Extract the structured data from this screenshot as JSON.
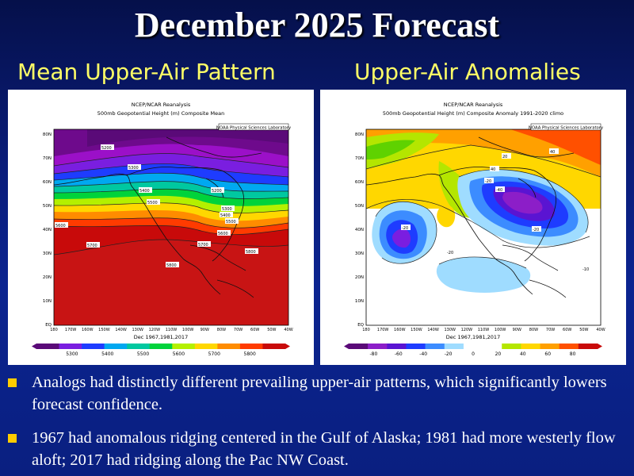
{
  "slide": {
    "title": "December 2025 Forecast",
    "left_heading": "Mean Upper-Air Pattern",
    "right_heading": "Upper-Air Anomalies"
  },
  "colors": {
    "background": "#0a1d7a",
    "title": "#ffffff",
    "heading": "#ffff66",
    "bullet": "#ffcc00"
  },
  "maps": {
    "left": {
      "line1": "NCEP/NCAR Reanalysis",
      "line2": "500mb Geopotential Height (m) Composite Mean",
      "lab": "NOAA Physical Sciences Laboratory",
      "dates": "Dec 1967,1981,2017",
      "lat_labels": [
        "80N",
        "70N",
        "60N",
        "50N",
        "40N",
        "30N",
        "20N",
        "10N",
        "EQ"
      ],
      "lon_labels": [
        "180",
        "170W",
        "160W",
        "150W",
        "140W",
        "130W",
        "120W",
        "110W",
        "100W",
        "90W",
        "80W",
        "70W",
        "60W",
        "50W",
        "40W"
      ],
      "colorbar_labels": [
        "5300",
        "5400",
        "5500",
        "5600",
        "5700",
        "5800"
      ],
      "contour_labels": [
        "5200",
        "5300",
        "5400",
        "5500",
        "5600",
        "5700",
        "5800",
        "5200",
        "5300",
        "5400",
        "5500",
        "5600",
        "5700",
        "5800"
      ]
    },
    "right": {
      "line1": "NCEP/NCAR Reanalysis",
      "line2": "500mb Geopotential Height (m) Composite Anomaly 1991-2020 climo",
      "lab": "NOAA Physical Sciences Laboratory",
      "dates": "Dec 1967,1981,2017",
      "lat_labels": [
        "80N",
        "70N",
        "60N",
        "50N",
        "40N",
        "30N",
        "20N",
        "10N",
        "EQ"
      ],
      "lon_labels": [
        "180",
        "170W",
        "160W",
        "150W",
        "140W",
        "130W",
        "120W",
        "110W",
        "100W",
        "90W",
        "80W",
        "70W",
        "60W",
        "50W",
        "40W"
      ],
      "colorbar_labels": [
        "-80",
        "-60",
        "-40",
        "-20",
        "0",
        "20",
        "40",
        "60",
        "80"
      ],
      "contour_labels": [
        "40",
        "-20",
        "-20",
        "40",
        "-40",
        "-20",
        "-20",
        "-10",
        "20"
      ]
    }
  },
  "bullets": [
    "Analogs had distinctly different prevailing upper-air patterns, which significantly lowers forecast confidence.",
    "1967 had anomalous ridging centered in the Gulf of Alaska; 1981 had more westerly flow aloft; 2017 had ridging along the Pac NW Coast."
  ]
}
